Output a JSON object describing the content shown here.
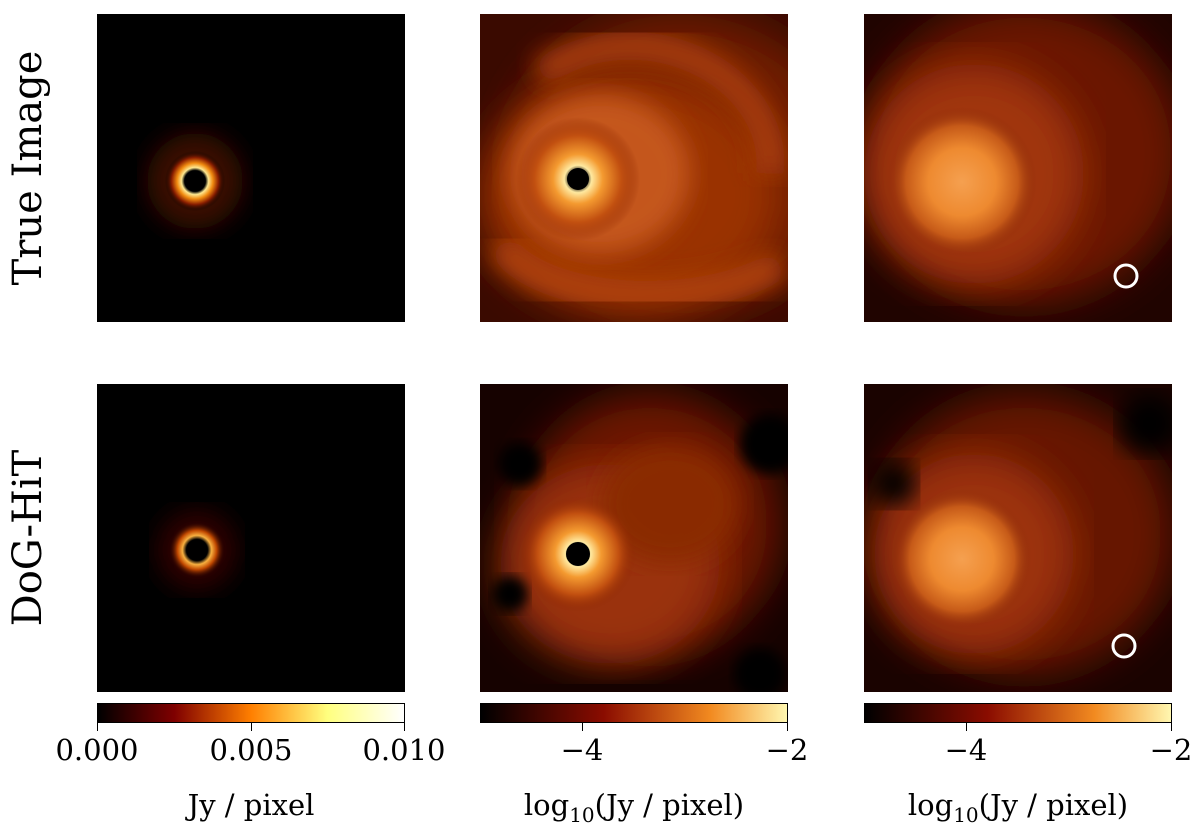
{
  "rows": [
    {
      "label": "True Image"
    },
    {
      "label": "DoG-HiT"
    }
  ],
  "colorbars": [
    {
      "ticks": [
        "0.000",
        "0.005",
        "0.010"
      ],
      "label": "Jy / pixel"
    },
    {
      "ticks": [
        "−4",
        "−2"
      ],
      "label_prefix": "log",
      "label_sub": "10",
      "label_suffix": "(Jy / pixel)"
    },
    {
      "ticks": [
        "−4",
        "−2"
      ],
      "label_prefix": "log",
      "label_sub": "10",
      "label_suffix": "(Jy / pixel)"
    }
  ],
  "colormap": "afmhot",
  "beam_marker_color": "#ffffff"
}
